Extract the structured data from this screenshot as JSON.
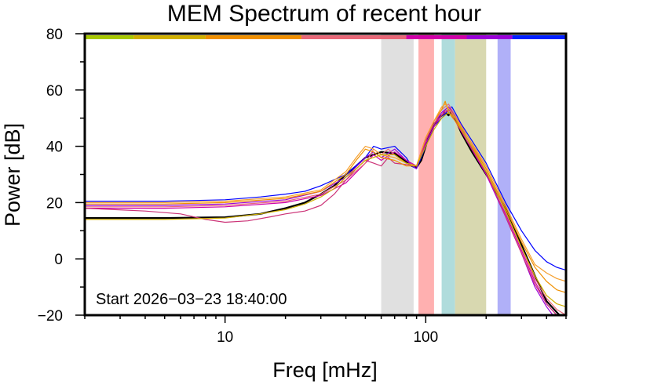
{
  "chart_data": {
    "type": "line",
    "title": "MEM Spectrum of recent hour",
    "xlabel": "Freq [mHz]",
    "ylabel": "Power [dB]",
    "x_scale": "log",
    "xlim": [
      2,
      500
    ],
    "ylim": [
      -20,
      80
    ],
    "x_tick_labels": [
      {
        "value": 10,
        "label": "10"
      },
      {
        "value": 100,
        "label": "100"
      }
    ],
    "y_tick_labels": [
      {
        "value": -20,
        "label": "−20"
      },
      {
        "value": 0,
        "label": "0"
      },
      {
        "value": 20,
        "label": "20"
      },
      {
        "value": 40,
        "label": "40"
      },
      {
        "value": 60,
        "label": "60"
      },
      {
        "value": 80,
        "label": "80"
      }
    ],
    "annotation": "Start 2026−03−23 18:40:00",
    "bands": [
      {
        "x0": 60,
        "x1": 87,
        "color": "#e0e0e0"
      },
      {
        "x0": 92,
        "x1": 110,
        "color": "#ffb0b0"
      },
      {
        "x0": 120,
        "x1": 140,
        "color": "#b0dcdc"
      },
      {
        "x0": 140,
        "x1": 200,
        "color": "#d8d8b0"
      },
      {
        "x0": 228,
        "x1": 265,
        "color": "#b0b0f8"
      }
    ],
    "color_bar": [
      {
        "x0": 2,
        "x1": 3.5,
        "color": "#a8c800"
      },
      {
        "x0": 3.5,
        "x1": 8,
        "color": "#d0b000"
      },
      {
        "x0": 8,
        "x1": 24,
        "color": "#f09000"
      },
      {
        "x0": 24,
        "x1": 80,
        "color": "#e86878"
      },
      {
        "x0": 80,
        "x1": 160,
        "color": "#d000a8"
      },
      {
        "x0": 160,
        "x1": 270,
        "color": "#9a00d8"
      },
      {
        "x0": 270,
        "x1": 500,
        "color": "#0020ff"
      }
    ],
    "series": [
      {
        "color": "#000000",
        "width": 2.2,
        "points": [
          [
            2,
            14.5
          ],
          [
            5,
            14.5
          ],
          [
            10,
            14.8
          ],
          [
            15,
            16
          ],
          [
            20,
            18
          ],
          [
            25,
            20
          ],
          [
            30,
            23
          ],
          [
            35,
            26
          ],
          [
            40,
            30
          ],
          [
            45,
            33
          ],
          [
            50,
            36
          ],
          [
            60,
            38
          ],
          [
            70,
            37.5
          ],
          [
            80,
            34.5
          ],
          [
            85,
            33
          ],
          [
            90,
            32.5
          ],
          [
            95,
            35
          ],
          [
            100,
            40
          ],
          [
            105,
            45
          ],
          [
            110,
            48
          ],
          [
            120,
            51
          ],
          [
            125,
            52
          ],
          [
            130,
            51
          ],
          [
            135,
            52.5
          ],
          [
            140,
            50
          ],
          [
            150,
            45
          ],
          [
            170,
            38
          ],
          [
            200,
            30
          ],
          [
            250,
            18
          ],
          [
            300,
            5
          ],
          [
            350,
            -6
          ],
          [
            400,
            -15
          ],
          [
            450,
            -19
          ],
          [
            480,
            -21
          ]
        ]
      },
      {
        "color": "#0000ff",
        "width": 1.2,
        "points": [
          [
            2,
            20.5
          ],
          [
            5,
            20.5
          ],
          [
            10,
            21
          ],
          [
            15,
            22
          ],
          [
            20,
            23
          ],
          [
            25,
            24
          ],
          [
            30,
            26
          ],
          [
            40,
            30
          ],
          [
            50,
            36
          ],
          [
            55,
            40
          ],
          [
            60,
            39
          ],
          [
            70,
            40
          ],
          [
            80,
            36
          ],
          [
            85,
            33
          ],
          [
            90,
            32
          ],
          [
            100,
            40
          ],
          [
            110,
            47
          ],
          [
            120,
            50
          ],
          [
            130,
            53
          ],
          [
            135,
            54
          ],
          [
            140,
            52
          ],
          [
            150,
            48
          ],
          [
            170,
            42
          ],
          [
            200,
            34
          ],
          [
            250,
            20
          ],
          [
            300,
            10
          ],
          [
            350,
            3
          ],
          [
            400,
            -1
          ],
          [
            450,
            -3
          ],
          [
            500,
            -4
          ]
        ]
      },
      {
        "color": "#9a00d8",
        "width": 1.2,
        "points": [
          [
            2,
            19
          ],
          [
            5,
            19
          ],
          [
            10,
            19.5
          ],
          [
            20,
            21
          ],
          [
            30,
            24
          ],
          [
            40,
            29
          ],
          [
            50,
            36
          ],
          [
            55,
            38
          ],
          [
            60,
            36
          ],
          [
            70,
            39
          ],
          [
            80,
            35
          ],
          [
            90,
            32
          ],
          [
            100,
            42
          ],
          [
            110,
            48
          ],
          [
            120,
            52
          ],
          [
            130,
            54
          ],
          [
            140,
            51
          ],
          [
            160,
            43
          ],
          [
            200,
            30
          ],
          [
            250,
            15
          ],
          [
            300,
            2
          ],
          [
            350,
            -10
          ],
          [
            400,
            -17
          ],
          [
            430,
            -20
          ]
        ]
      },
      {
        "color": "#d000a8",
        "width": 1.2,
        "points": [
          [
            2,
            18
          ],
          [
            5,
            18
          ],
          [
            10,
            18.5
          ],
          [
            20,
            20
          ],
          [
            30,
            22.5
          ],
          [
            40,
            27
          ],
          [
            50,
            34
          ],
          [
            55,
            37
          ],
          [
            60,
            35
          ],
          [
            70,
            38
          ],
          [
            80,
            35
          ],
          [
            90,
            33
          ],
          [
            100,
            41
          ],
          [
            110,
            47
          ],
          [
            120,
            51
          ],
          [
            125,
            53
          ],
          [
            135,
            51
          ],
          [
            160,
            42
          ],
          [
            200,
            30
          ],
          [
            250,
            16
          ],
          [
            300,
            3
          ],
          [
            350,
            -8
          ],
          [
            400,
            -16
          ],
          [
            450,
            -20
          ]
        ]
      },
      {
        "color": "#e86878",
        "width": 1.2,
        "points": [
          [
            2,
            18.5
          ],
          [
            5,
            18.5
          ],
          [
            10,
            19
          ],
          [
            20,
            20.5
          ],
          [
            30,
            23
          ],
          [
            40,
            28
          ],
          [
            50,
            34
          ],
          [
            55,
            39
          ],
          [
            60,
            37
          ],
          [
            65,
            39
          ],
          [
            70,
            37
          ],
          [
            80,
            34
          ],
          [
            90,
            33
          ],
          [
            100,
            43
          ],
          [
            110,
            48
          ],
          [
            120,
            53
          ],
          [
            130,
            55
          ],
          [
            140,
            51
          ],
          [
            160,
            44
          ],
          [
            200,
            32
          ],
          [
            250,
            17
          ],
          [
            300,
            4
          ],
          [
            350,
            -7
          ],
          [
            400,
            -14
          ],
          [
            450,
            -18
          ],
          [
            500,
            -20
          ]
        ]
      },
      {
        "color": "#cc3377",
        "width": 1.2,
        "points": [
          [
            2,
            18
          ],
          [
            4,
            17
          ],
          [
            6,
            16
          ],
          [
            8,
            14
          ],
          [
            10,
            13
          ],
          [
            13,
            13.5
          ],
          [
            17,
            15
          ],
          [
            20,
            16
          ],
          [
            25,
            17
          ],
          [
            30,
            19
          ],
          [
            35,
            23
          ],
          [
            40,
            28
          ],
          [
            45,
            32
          ],
          [
            50,
            35
          ],
          [
            55,
            34
          ],
          [
            60,
            33
          ],
          [
            65,
            36
          ],
          [
            70,
            34
          ],
          [
            80,
            33.5
          ],
          [
            90,
            33
          ],
          [
            100,
            42
          ],
          [
            110,
            48
          ],
          [
            120,
            51
          ],
          [
            130,
            53
          ],
          [
            140,
            50
          ],
          [
            160,
            42
          ],
          [
            200,
            31
          ],
          [
            250,
            15
          ],
          [
            300,
            2
          ],
          [
            350,
            -9
          ],
          [
            400,
            -16
          ],
          [
            450,
            -20
          ]
        ]
      },
      {
        "color": "#f09000",
        "width": 1.2,
        "points": [
          [
            2,
            19.5
          ],
          [
            5,
            19.5
          ],
          [
            10,
            20
          ],
          [
            20,
            21.5
          ],
          [
            30,
            24
          ],
          [
            40,
            30
          ],
          [
            45,
            35
          ],
          [
            50,
            39
          ],
          [
            55,
            38
          ],
          [
            60,
            36
          ],
          [
            70,
            35
          ],
          [
            80,
            33
          ],
          [
            90,
            33
          ],
          [
            100,
            43
          ],
          [
            110,
            49
          ],
          [
            120,
            53
          ],
          [
            125,
            56
          ],
          [
            130,
            52
          ],
          [
            140,
            49
          ],
          [
            160,
            43
          ],
          [
            200,
            32
          ],
          [
            250,
            18
          ],
          [
            300,
            6
          ],
          [
            350,
            -3
          ],
          [
            400,
            -8
          ],
          [
            450,
            -11
          ],
          [
            500,
            -12
          ]
        ]
      },
      {
        "color": "#f5a030",
        "width": 1.2,
        "points": [
          [
            2,
            20
          ],
          [
            5,
            20
          ],
          [
            10,
            20.5
          ],
          [
            20,
            22
          ],
          [
            30,
            24.5
          ],
          [
            40,
            31
          ],
          [
            45,
            36
          ],
          [
            50,
            40
          ],
          [
            55,
            39
          ],
          [
            60,
            37
          ],
          [
            70,
            36
          ],
          [
            80,
            34
          ],
          [
            90,
            33
          ],
          [
            100,
            43
          ],
          [
            110,
            49
          ],
          [
            120,
            54
          ],
          [
            125,
            55
          ],
          [
            135,
            52
          ],
          [
            160,
            44
          ],
          [
            200,
            33
          ],
          [
            250,
            19
          ],
          [
            300,
            7
          ],
          [
            350,
            -2
          ],
          [
            400,
            -5
          ],
          [
            450,
            -7
          ],
          [
            500,
            -8
          ]
        ]
      },
      {
        "color": "#d0b000",
        "width": 1.2,
        "points": [
          [
            2,
            14
          ],
          [
            5,
            14
          ],
          [
            10,
            14.5
          ],
          [
            15,
            16
          ],
          [
            20,
            17.5
          ],
          [
            25,
            19.5
          ],
          [
            30,
            22
          ],
          [
            35,
            25
          ],
          [
            40,
            29
          ],
          [
            45,
            32
          ],
          [
            50,
            35
          ],
          [
            60,
            37
          ],
          [
            70,
            37
          ],
          [
            80,
            34
          ],
          [
            90,
            33
          ],
          [
            100,
            40
          ],
          [
            110,
            46
          ],
          [
            120,
            50
          ],
          [
            130,
            52
          ],
          [
            140,
            50
          ],
          [
            160,
            43
          ],
          [
            200,
            31
          ],
          [
            250,
            17
          ],
          [
            300,
            4
          ],
          [
            350,
            -6
          ],
          [
            400,
            -13
          ],
          [
            450,
            -16
          ],
          [
            500,
            -17
          ]
        ]
      }
    ]
  }
}
